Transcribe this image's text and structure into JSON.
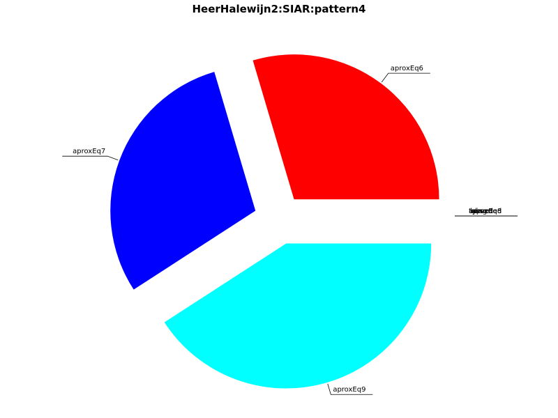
{
  "chart_data": {
    "type": "pie",
    "title": "HeerHalewijn2:SIAR:pattern4",
    "slices": [
      {
        "label": "aproxEq6",
        "value": 21,
        "color": "#ff0000",
        "exploded": true
      },
      {
        "label": "aproxEq7",
        "value": 21,
        "color": "#0000ff",
        "exploded": true
      },
      {
        "label": "aproxEq8",
        "value": 0,
        "color": "#00ff00",
        "exploded": false
      },
      {
        "label": "aproxEq9",
        "value": 29,
        "color": "#00ffff",
        "exploded": true
      },
      {
        "label": "lapsed",
        "value": 0,
        "color": "#ff00ff",
        "exploded": false
      },
      {
        "label": "sl",
        "value": 0,
        "color": "#ffff00",
        "exploded": false
      },
      {
        "label": "ts",
        "value": 0,
        "color": "#000000",
        "exploded": false
      },
      {
        "label": "lying",
        "value": 0,
        "color": "#888888",
        "exploded": false
      },
      {
        "label": "asserted",
        "value": 0,
        "color": "#aaaaaa",
        "exploded": false
      }
    ]
  }
}
